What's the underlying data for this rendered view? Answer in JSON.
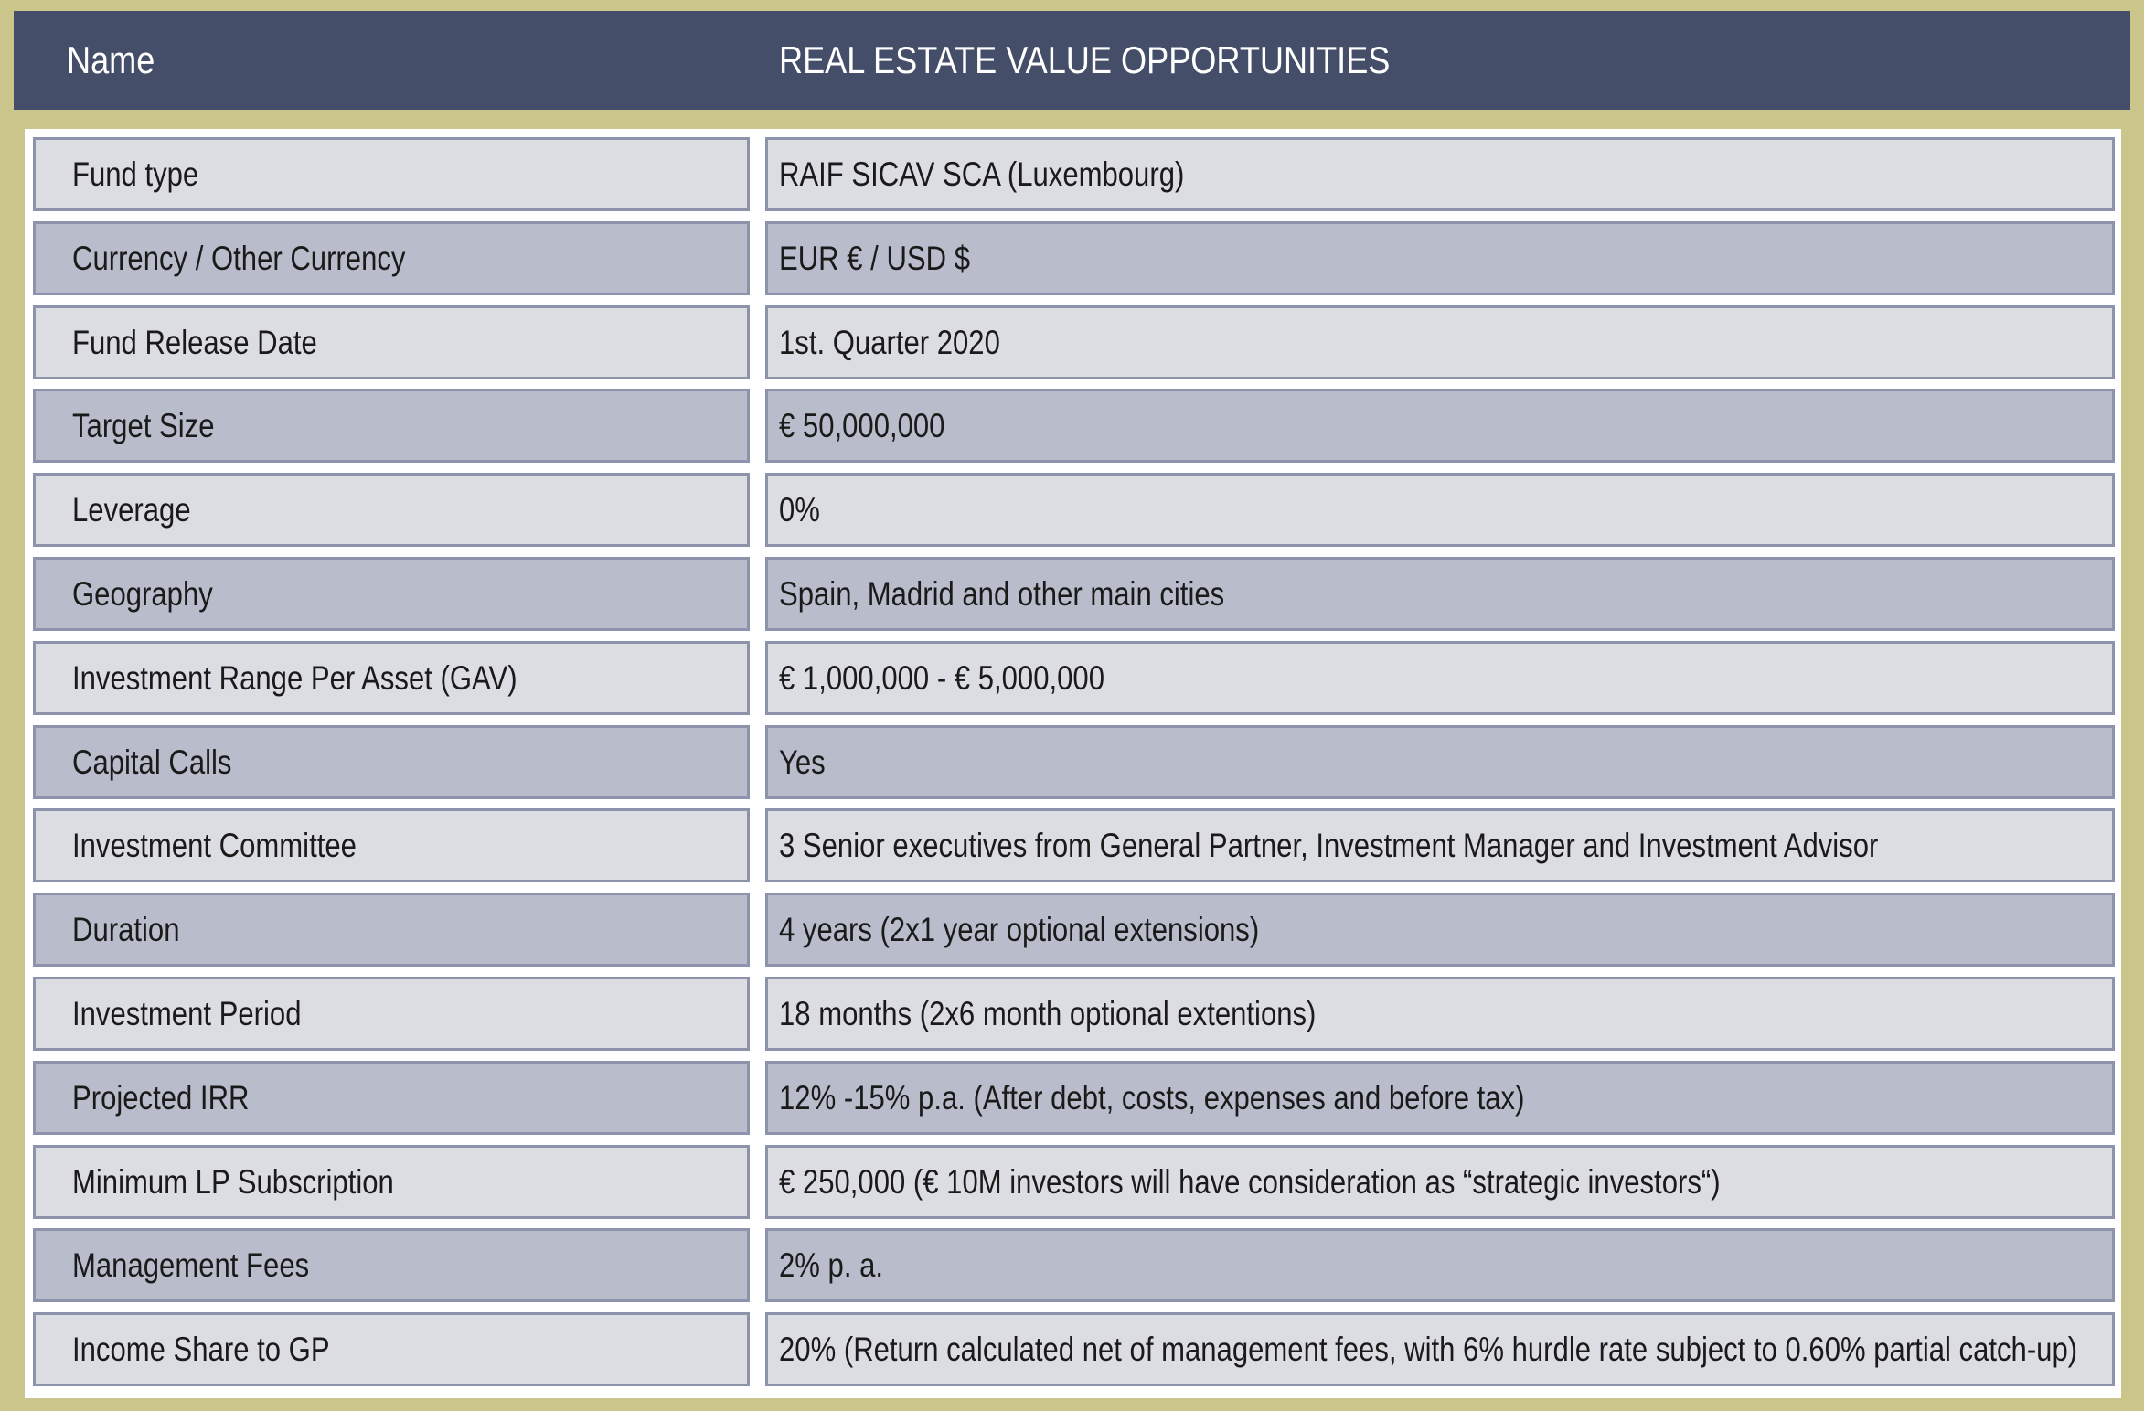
{
  "header": {
    "label": "Name",
    "title": "REAL ESTATE VALUE OPPORTUNITIES"
  },
  "rows": [
    [
      "Fund type",
      "RAIF SICAV SCA (Luxembourg)"
    ],
    [
      "Currency / Other Currency",
      "EUR € / USD $"
    ],
    [
      "Fund Release Date",
      "1st. Quarter 2020"
    ],
    [
      "Target Size",
      "€ 50,000,000"
    ],
    [
      "Leverage",
      "0%"
    ],
    [
      "Geography",
      "Spain, Madrid and other main cities"
    ],
    [
      "Investment Range Per Asset (GAV)",
      "€ 1,000,000 - € 5,000,000"
    ],
    [
      "Capital Calls",
      "Yes"
    ],
    [
      "Investment Committee",
      "3 Senior executives from General Partner, Investment Manager and Investment Advisor"
    ],
    [
      "Duration",
      "4 years (2x1 year optional extensions)"
    ],
    [
      "Investment Period",
      "18 months (2x6 month optional extentions)"
    ],
    [
      "Projected IRR",
      "12% -15% p.a. (After debt, costs, expenses and before tax)"
    ],
    [
      "Minimum LP Subscription",
      "€ 250,000 (€ 10M investors will have consideration as “strategic investors“)"
    ],
    [
      "Management Fees",
      "2% p. a."
    ],
    [
      "Income Share to GP",
      "20% (Return calculated net of management fees, with 6% hurdle rate subject to 0.60% partial catch-up)"
    ]
  ]
}
